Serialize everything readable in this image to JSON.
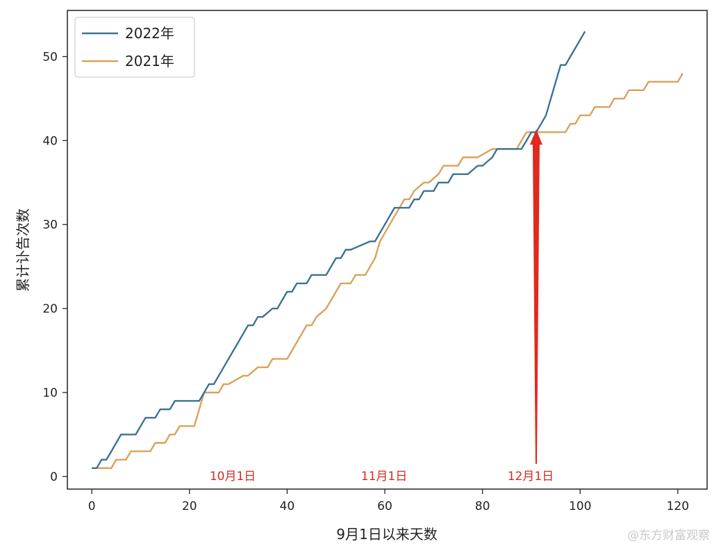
{
  "chart_data": {
    "type": "line",
    "xlabel": "9月1日以来天数",
    "ylabel": "累计讣告次数",
    "xlim": [
      -5,
      126
    ],
    "ylim": [
      -1.5,
      55.5
    ],
    "xticks": [
      0,
      20,
      40,
      60,
      80,
      100,
      120
    ],
    "yticks": [
      0,
      10,
      20,
      30,
      40,
      50
    ],
    "grid": false,
    "legend_position": "top-left",
    "series": [
      {
        "name": "2022年",
        "color": "#3a7295",
        "x": [
          0,
          1,
          2,
          3,
          4,
          5,
          6,
          9,
          10,
          11,
          12,
          13,
          14,
          15,
          16,
          17,
          22,
          23,
          24,
          25,
          26,
          27,
          28,
          29,
          30,
          31,
          32,
          33,
          34,
          35,
          37,
          38,
          39,
          40,
          41,
          42,
          44,
          45,
          48,
          49,
          50,
          51,
          52,
          53,
          57,
          58,
          60,
          61,
          62,
          63,
          65,
          66,
          67,
          68,
          69,
          70,
          71,
          73,
          74,
          75,
          76,
          77,
          79,
          80,
          82,
          83,
          84,
          85,
          86,
          87,
          88,
          89,
          90,
          91,
          92,
          93,
          94,
          95,
          96,
          97,
          98,
          99,
          100,
          101
        ],
        "y": [
          1,
          1,
          2,
          2,
          3,
          4,
          5,
          5,
          6,
          7,
          7,
          7,
          8,
          8,
          8,
          9,
          9,
          10,
          11,
          11,
          12,
          13,
          14,
          15,
          16,
          17,
          18,
          18,
          19,
          19,
          20,
          20,
          21,
          22,
          22,
          23,
          23,
          24,
          24,
          25,
          26,
          26,
          27,
          27,
          28,
          28,
          30,
          31,
          32,
          32,
          32,
          33,
          33,
          34,
          34,
          34,
          35,
          35,
          36,
          36,
          36,
          36,
          37,
          37,
          38,
          39,
          39,
          39,
          39,
          39,
          39,
          40,
          41,
          41,
          42,
          43,
          45,
          47,
          49,
          49,
          50,
          51,
          52,
          53
        ]
      },
      {
        "name": "2021年",
        "color": "#d9a25a",
        "x": [
          0,
          3,
          4,
          5,
          6,
          7,
          8,
          11,
          12,
          13,
          14,
          15,
          16,
          17,
          18,
          20,
          21,
          22,
          23,
          26,
          27,
          28,
          31,
          32,
          34,
          35,
          36,
          37,
          40,
          41,
          42,
          43,
          44,
          45,
          46,
          48,
          49,
          50,
          51,
          53,
          54,
          55,
          56,
          57,
          58,
          59,
          60,
          61,
          62,
          63,
          64,
          65,
          66,
          68,
          69,
          71,
          72,
          75,
          76,
          79,
          82,
          87,
          88,
          89,
          91,
          94,
          96,
          97,
          98,
          99,
          100,
          101,
          102,
          103,
          104,
          105,
          106,
          107,
          108,
          109,
          110,
          111,
          113,
          114,
          115,
          118,
          119,
          120,
          121
        ],
        "y": [
          1,
          1,
          1,
          2,
          2,
          2,
          3,
          3,
          3,
          4,
          4,
          4,
          5,
          5,
          6,
          6,
          6,
          8,
          10,
          10,
          11,
          11,
          12,
          12,
          13,
          13,
          13,
          14,
          14,
          15,
          16,
          17,
          18,
          18,
          19,
          20,
          21,
          22,
          23,
          23,
          24,
          24,
          24,
          25,
          26,
          28,
          29,
          30,
          31,
          32,
          33,
          33,
          34,
          35,
          35,
          36,
          37,
          37,
          38,
          38,
          39,
          39,
          40,
          41,
          41,
          41,
          41,
          41,
          42,
          42,
          43,
          43,
          43,
          44,
          44,
          44,
          44,
          45,
          45,
          45,
          46,
          46,
          46,
          47,
          47,
          47,
          47,
          47,
          48
        ]
      }
    ],
    "annotations": [
      {
        "text": "10月1日",
        "x": 30,
        "y": 0,
        "color": "#d42a1e"
      },
      {
        "text": "11月1日",
        "x": 61,
        "y": 0,
        "color": "#d42a1e"
      },
      {
        "text": "12月1日",
        "x": 91,
        "y": 0,
        "color": "#d42a1e"
      }
    ],
    "arrow": {
      "x": 91,
      "y_start": 2,
      "y_end": 41,
      "color": "#e02a1d"
    }
  },
  "watermark": "@东方财富观察"
}
